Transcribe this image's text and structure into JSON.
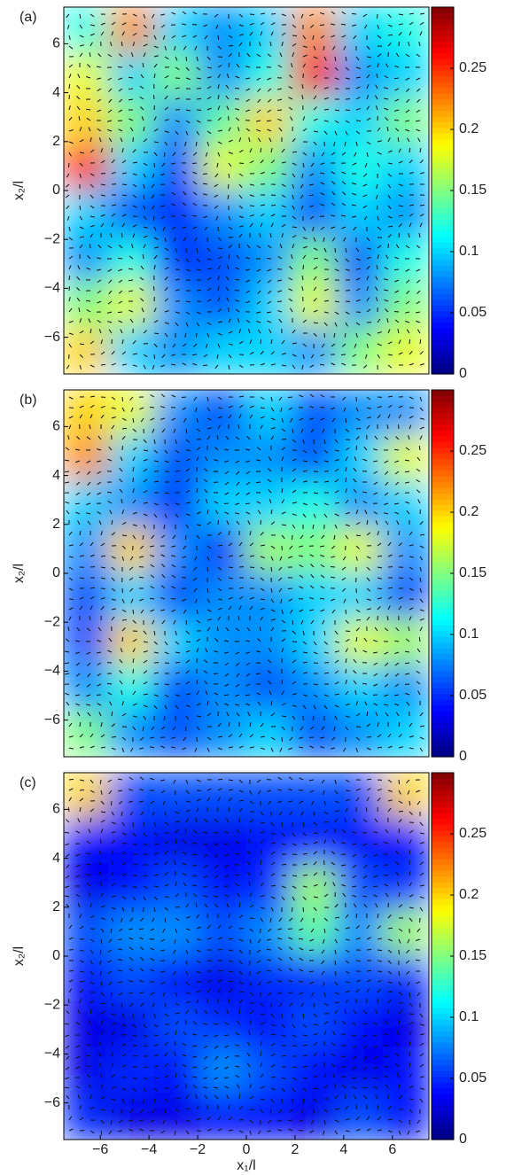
{
  "chart_data": [
    {
      "type": "heatmap",
      "title": "(a)",
      "ylabel": "x₂/l",
      "xlim": [
        -7.5,
        7.5
      ],
      "ylim": [
        -7.5,
        7.5
      ],
      "yticks": [
        -6,
        -4,
        -2,
        0,
        2,
        4,
        6
      ],
      "clim": [
        0,
        0.3
      ],
      "cticks": [
        0,
        0.05,
        0.1,
        0.15,
        0.2,
        0.25
      ],
      "z": [
        [
          0.12,
          0.22,
          0.1,
          0.08,
          0.1,
          0.22,
          0.1,
          0.12
        ],
        [
          0.18,
          0.1,
          0.15,
          0.08,
          0.12,
          0.26,
          0.08,
          0.1
        ],
        [
          0.2,
          0.15,
          0.08,
          0.14,
          0.2,
          0.12,
          0.1,
          0.15
        ],
        [
          0.25,
          0.1,
          0.06,
          0.18,
          0.15,
          0.08,
          0.12,
          0.1
        ],
        [
          0.1,
          0.06,
          0.05,
          0.08,
          0.1,
          0.06,
          0.1,
          0.08
        ],
        [
          0.08,
          0.12,
          0.05,
          0.06,
          0.08,
          0.15,
          0.06,
          0.12
        ],
        [
          0.15,
          0.18,
          0.08,
          0.06,
          0.1,
          0.18,
          0.08,
          0.15
        ],
        [
          0.2,
          0.1,
          0.08,
          0.1,
          0.1,
          0.08,
          0.15,
          0.18
        ]
      ]
    },
    {
      "type": "heatmap",
      "title": "(b)",
      "ylabel": "x₂/l",
      "xlim": [
        -7.5,
        7.5
      ],
      "ylim": [
        -7.5,
        7.5
      ],
      "yticks": [
        -6,
        -4,
        -2,
        0,
        2,
        4,
        6
      ],
      "clim": [
        0,
        0.3
      ],
      "cticks": [
        0,
        0.05,
        0.1,
        0.15,
        0.2,
        0.25
      ],
      "z": [
        [
          0.2,
          0.18,
          0.08,
          0.06,
          0.1,
          0.06,
          0.08,
          0.08
        ],
        [
          0.22,
          0.1,
          0.06,
          0.08,
          0.08,
          0.06,
          0.1,
          0.18
        ],
        [
          0.1,
          0.08,
          0.05,
          0.1,
          0.1,
          0.12,
          0.08,
          0.1
        ],
        [
          0.08,
          0.2,
          0.08,
          0.05,
          0.16,
          0.15,
          0.18,
          0.08
        ],
        [
          0.06,
          0.1,
          0.06,
          0.08,
          0.08,
          0.1,
          0.1,
          0.06
        ],
        [
          0.06,
          0.2,
          0.1,
          0.08,
          0.08,
          0.1,
          0.18,
          0.16
        ],
        [
          0.08,
          0.12,
          0.06,
          0.08,
          0.06,
          0.08,
          0.1,
          0.08
        ],
        [
          0.15,
          0.08,
          0.06,
          0.08,
          0.1,
          0.06,
          0.08,
          0.1
        ]
      ]
    },
    {
      "type": "heatmap",
      "title": "(c)",
      "ylabel": "x₂/l",
      "xlabel": "x₁/l",
      "xlim": [
        -7.5,
        7.5
      ],
      "ylim": [
        -7.5,
        7.5
      ],
      "xticks": [
        -6,
        -4,
        -2,
        0,
        2,
        4,
        6
      ],
      "yticks": [
        -6,
        -4,
        -2,
        0,
        2,
        4,
        6
      ],
      "clim": [
        0,
        0.3
      ],
      "cticks": [
        0,
        0.05,
        0.1,
        0.15,
        0.2,
        0.25
      ],
      "z": [
        [
          0.2,
          0.06,
          0.06,
          0.06,
          0.06,
          0.06,
          0.06,
          0.2
        ],
        [
          0.04,
          0.04,
          0.03,
          0.03,
          0.04,
          0.04,
          0.04,
          0.04
        ],
        [
          0.03,
          0.04,
          0.06,
          0.04,
          0.05,
          0.16,
          0.06,
          0.05
        ],
        [
          0.06,
          0.08,
          0.08,
          0.06,
          0.08,
          0.14,
          0.08,
          0.16
        ],
        [
          0.04,
          0.06,
          0.04,
          0.03,
          0.05,
          0.05,
          0.06,
          0.05
        ],
        [
          0.03,
          0.03,
          0.06,
          0.05,
          0.04,
          0.06,
          0.04,
          0.03
        ],
        [
          0.03,
          0.05,
          0.04,
          0.08,
          0.06,
          0.04,
          0.03,
          0.04
        ],
        [
          0.05,
          0.03,
          0.03,
          0.04,
          0.04,
          0.03,
          0.06,
          0.04
        ]
      ]
    }
  ]
}
